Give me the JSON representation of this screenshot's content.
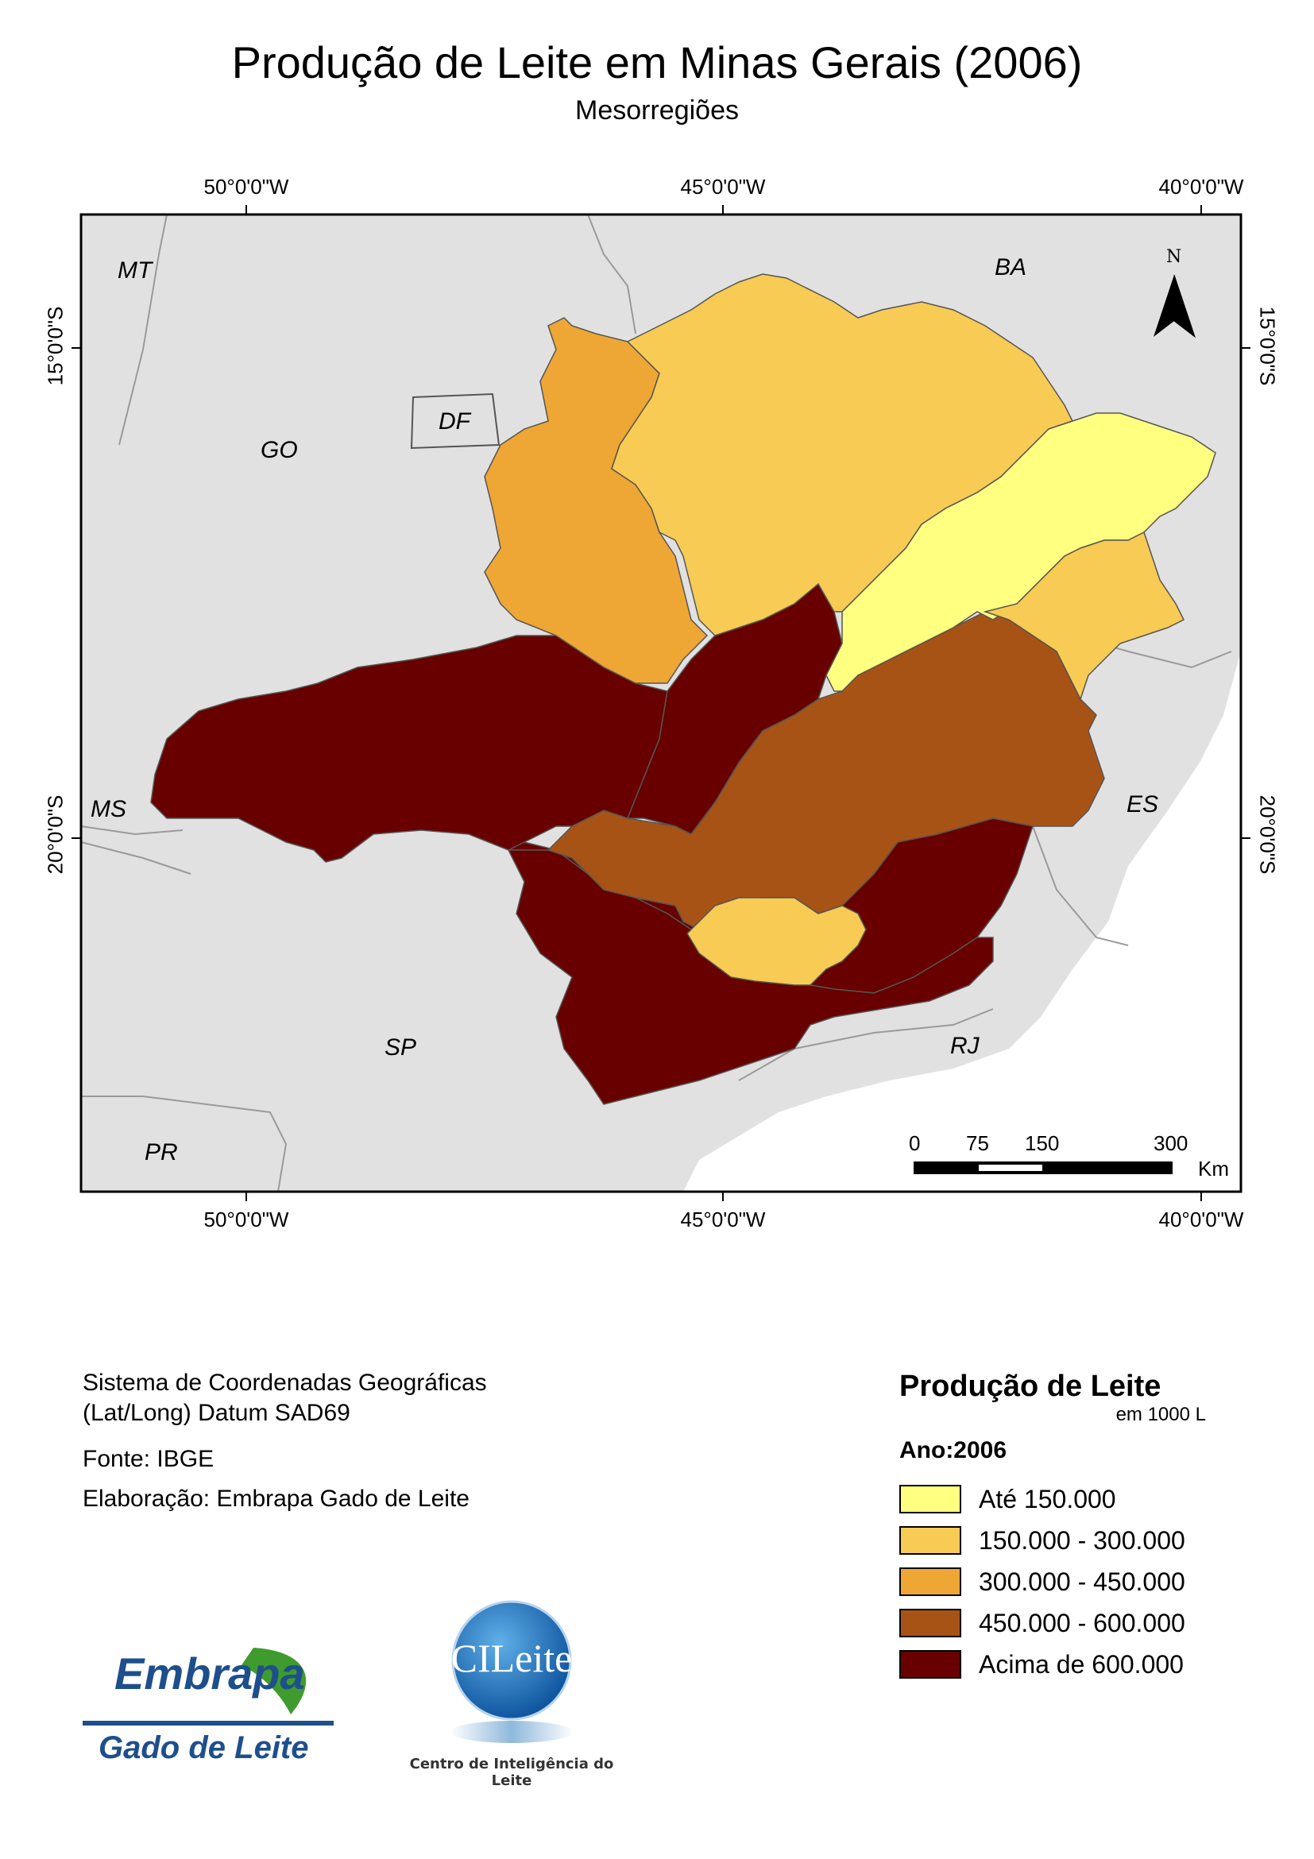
{
  "header": {
    "title": "Produção de Leite em Minas Gerais (2006)",
    "subtitle": "Mesorregiões"
  },
  "map": {
    "longitude_ticks": [
      "50°0'0\"W",
      "45°0'0\"W",
      "40°0'0\"W"
    ],
    "latitude_ticks": [
      "15°0'0\"S",
      "20°0'0\"S"
    ],
    "state_labels": [
      "MT",
      "BA",
      "GO",
      "DF",
      "MS",
      "ES",
      "SP",
      "RJ",
      "PR"
    ],
    "north_arrow_label": "N",
    "scale_bar": {
      "ticks": [
        "0",
        "75",
        "150",
        "300"
      ],
      "unit": "Km"
    },
    "colors": {
      "background_states": "#e1e1e1",
      "ocean": "#ffffff",
      "class1": "#ffff80",
      "class2": "#f8cb55",
      "class3": "#eea635",
      "class4": "#a85316",
      "class5": "#680000"
    }
  },
  "info": {
    "coord_system_line1": "Sistema de Coordenadas Geográficas",
    "coord_system_line2": "(Lat/Long) Datum SAD69",
    "source": "Fonte: IBGE",
    "authorship": "Elaboração: Embrapa Gado de Leite"
  },
  "legend": {
    "title": "Produção de Leite",
    "unit": "em 1000 L",
    "year_label": "Ano:2006",
    "items": [
      {
        "label": "Até 150.000",
        "color": "#ffff80"
      },
      {
        "label": "150.000 - 300.000",
        "color": "#f8cb55"
      },
      {
        "label": "300.000 - 450.000",
        "color": "#eea635"
      },
      {
        "label": "450.000 - 600.000",
        "color": "#a85316"
      },
      {
        "label": "Acima de 600.000",
        "color": "#680000"
      }
    ]
  },
  "logos": {
    "embrapa_word": "Embrapa",
    "embrapa_sub": "Gado de Leite",
    "cileite_word": "CILeite",
    "cileite_sub": "Centro de Inteligência do Leite"
  }
}
